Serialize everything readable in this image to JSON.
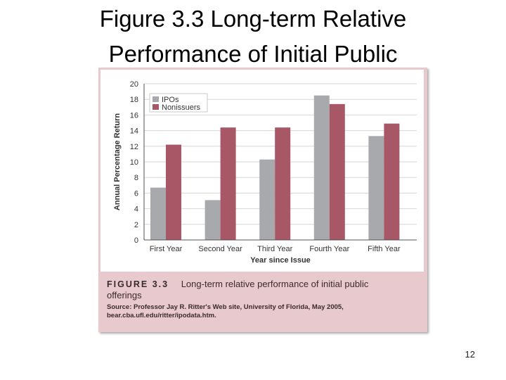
{
  "slide": {
    "title_line1": "Figure 3.3 Long-term Relative",
    "title_line2": "Performance of Initial Public",
    "page_number": "12"
  },
  "caption": {
    "figure_label": "FIGURE 3.3",
    "text_line1": "Long-term relative performance of initial public",
    "text_line2": "offerings",
    "source": "Source: Professor Jay R. Ritter's Web site, University of Florida, May 2005, bear.cba.ufl.edu/ritter/ipodata.htm."
  },
  "colors": {
    "ipos": "#a7a9ac",
    "nonissuers": "#a85766",
    "grid": "#d6d6d6",
    "card": "#e8c9cd"
  },
  "chart_data": {
    "type": "bar",
    "title": "",
    "xlabel": "Year since Issue",
    "ylabel": "Annual Percentage Return",
    "ylim": [
      0,
      20
    ],
    "yticks": [
      0,
      2,
      4,
      6,
      8,
      10,
      12,
      14,
      16,
      18,
      20
    ],
    "grid": true,
    "legend": "top-left",
    "categories": [
      "First Year",
      "Second Year",
      "Third Year",
      "Fourth Year",
      "Fifth Year"
    ],
    "series": [
      {
        "name": "IPOs",
        "values": [
          6.7,
          5.1,
          10.3,
          18.5,
          13.3
        ]
      },
      {
        "name": "Nonissuers",
        "values": [
          12.2,
          14.4,
          14.4,
          17.4,
          14.9
        ]
      }
    ]
  }
}
